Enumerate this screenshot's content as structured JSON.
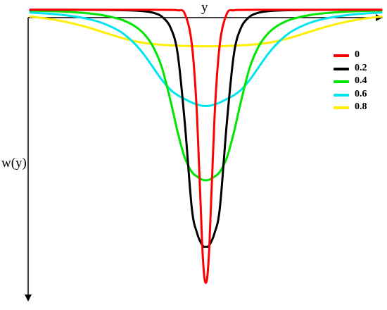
{
  "chart_data": {
    "type": "line",
    "xlabel": "y",
    "ylabel": "w(y)",
    "title": "",
    "grid": false,
    "legend_position": "right",
    "x": [
      -1.0,
      -0.9,
      -0.8,
      -0.7,
      -0.6,
      -0.5,
      -0.45,
      -0.4,
      -0.35,
      -0.3,
      -0.25,
      -0.2,
      -0.16,
      -0.12,
      -0.08,
      -0.05,
      -0.02,
      0.0,
      0.02,
      0.05,
      0.08,
      0.12,
      0.16,
      0.2,
      0.25,
      0.3,
      0.35,
      0.4,
      0.45,
      0.5,
      0.6,
      0.7,
      0.8,
      0.9,
      1.0
    ],
    "series": [
      {
        "name": "0",
        "color": "#ff0000",
        "values": [
          0.0,
          0.0,
          0.0,
          0.0,
          0.0,
          0.0,
          0.0,
          0.0,
          0.0,
          0.0,
          -0.001,
          -0.002,
          -0.007,
          -0.046,
          -0.409,
          -1.281,
          -2.869,
          -3.3,
          -2.869,
          -1.281,
          -0.409,
          -0.046,
          -0.007,
          -0.002,
          -0.001,
          0.0,
          0.0,
          0.0,
          0.0,
          0.0,
          0.0,
          0.0,
          0.0,
          0.0,
          0.0
        ]
      },
      {
        "name": "0.2",
        "color": "#000000",
        "values": [
          0.0,
          0.0,
          0.0,
          -0.001,
          -0.002,
          -0.004,
          -0.006,
          -0.01,
          -0.018,
          -0.036,
          -0.083,
          -0.22,
          -0.536,
          -1.359,
          -2.394,
          -2.697,
          -2.844,
          -2.864,
          -2.844,
          -2.697,
          -2.394,
          -1.359,
          -0.536,
          -0.22,
          -0.083,
          -0.036,
          -0.018,
          -0.01,
          -0.006,
          -0.004,
          -0.002,
          -0.001,
          0.0,
          0.0,
          0.0
        ]
      },
      {
        "name": "0.4",
        "color": "#00e600",
        "values": [
          -0.01,
          -0.015,
          -0.023,
          -0.037,
          -0.061,
          -0.107,
          -0.146,
          -0.205,
          -0.296,
          -0.447,
          -0.7,
          -1.109,
          -1.481,
          -1.787,
          -1.958,
          -2.015,
          -2.053,
          -2.06,
          -2.053,
          -2.015,
          -1.958,
          -1.787,
          -1.481,
          -1.109,
          -0.7,
          -0.447,
          -0.296,
          -0.205,
          -0.146,
          -0.107,
          -0.061,
          -0.037,
          -0.023,
          -0.015,
          -0.01
        ]
      },
      {
        "name": "0.6",
        "color": "#00e5ee",
        "values": [
          -0.033,
          -0.046,
          -0.066,
          -0.098,
          -0.152,
          -0.247,
          -0.322,
          -0.421,
          -0.547,
          -0.697,
          -0.848,
          -0.969,
          -1.032,
          -1.078,
          -1.121,
          -1.145,
          -1.16,
          -1.163,
          -1.16,
          -1.145,
          -1.121,
          -1.078,
          -1.032,
          -0.969,
          -0.848,
          -0.697,
          -0.547,
          -0.421,
          -0.322,
          -0.247,
          -0.152,
          -0.098,
          -0.066,
          -0.046,
          -0.033
        ]
      },
      {
        "name": "0.8",
        "color": "#ffee00",
        "values": [
          -0.082,
          -0.108,
          -0.145,
          -0.196,
          -0.26,
          -0.327,
          -0.357,
          -0.382,
          -0.401,
          -0.414,
          -0.423,
          -0.43,
          -0.434,
          -0.437,
          -0.439,
          -0.44,
          -0.441,
          -0.441,
          -0.441,
          -0.44,
          -0.439,
          -0.437,
          -0.434,
          -0.43,
          -0.423,
          -0.414,
          -0.401,
          -0.382,
          -0.357,
          -0.327,
          -0.26,
          -0.196,
          -0.145,
          -0.108,
          -0.082
        ]
      }
    ],
    "xlim": [
      -1.0,
      1.0
    ],
    "ylim": [
      -3.5,
      0.05
    ]
  }
}
